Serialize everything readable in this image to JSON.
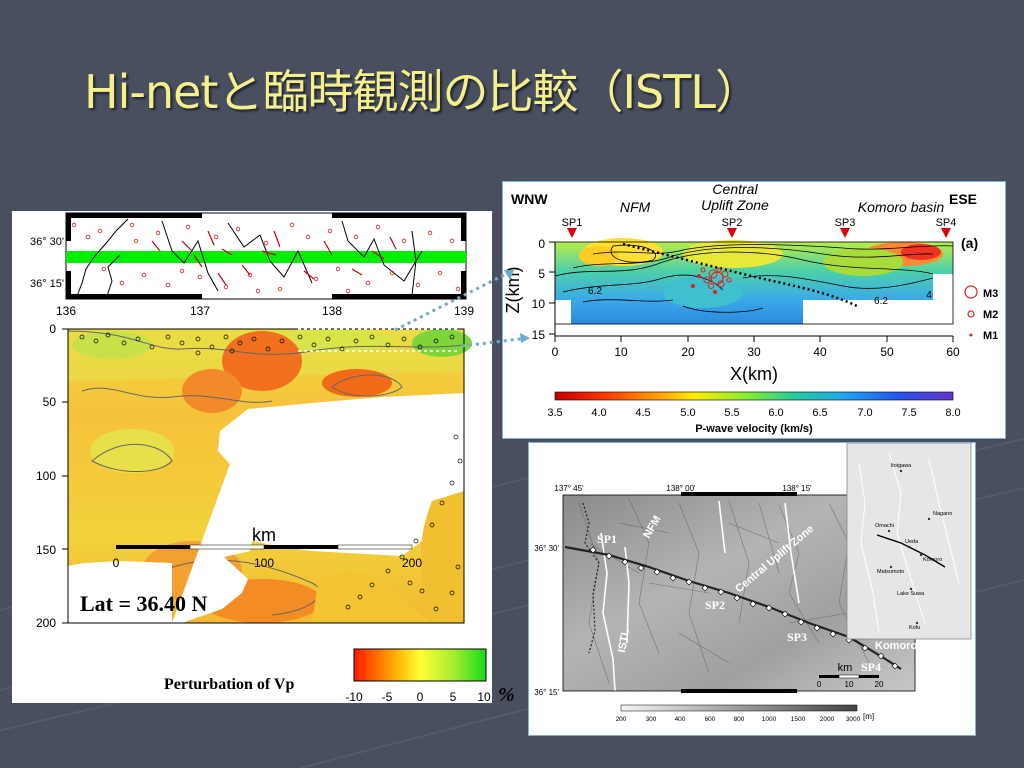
{
  "slide": {
    "title": "Hi-netと臨時観測の比較（ISTL）"
  },
  "left_panel": {
    "map_lat_labels": [
      "36° 30'",
      "36° 15'"
    ],
    "map_lon_labels": [
      "136",
      "137",
      "138",
      "139"
    ],
    "depth_ticks": [
      "0",
      "50",
      "100",
      "150",
      "200"
    ],
    "scale_label": "km",
    "scale_ticks": [
      "0",
      "100",
      "200"
    ],
    "lat_label": "Lat = 36.40 N",
    "legend_title": "Perturbation of Vp",
    "legend_ticks": [
      "-10",
      "-5",
      "0",
      "5",
      "10"
    ],
    "legend_unit": "%"
  },
  "top_right_panel": {
    "left_dir": "WNW",
    "right_dir": "ESE",
    "region_labels": [
      "NFM",
      "Central",
      "Uplift Zone",
      "Komoro basin"
    ],
    "shot_points": [
      "SP1",
      "SP2",
      "SP3",
      "SP4"
    ],
    "z_ticks": [
      "0",
      "5",
      "10",
      "15"
    ],
    "z_label": "Z(km)",
    "x_ticks": [
      "0",
      "10",
      "20",
      "30",
      "40",
      "50",
      "60"
    ],
    "x_label": "X(km)",
    "panel_tag": "(a)",
    "magnitude_legend": [
      "M3",
      "M2",
      "M1"
    ],
    "contour_labels": [
      "6.2",
      "6.2",
      "4"
    ],
    "colorbar_ticks": [
      "3.5",
      "4.0",
      "4.5",
      "5.0",
      "5.5",
      "6.0",
      "6.5",
      "7.0",
      "7.5",
      "8.0"
    ],
    "colorbar_label": "P-wave velocity (km/s)"
  },
  "bottom_right_panel": {
    "lon_labels": [
      "137° 45'",
      "138° 00'",
      "138° 15'"
    ],
    "lat_labels": [
      "36° 30'",
      "36° 15'"
    ],
    "map_labels": [
      "SP1",
      "SP2",
      "SP3",
      "SP4",
      "NFM",
      "ISTL",
      "Central Uplift Zone",
      "Komoro"
    ],
    "scale_label": "km",
    "scale_ticks": [
      "0",
      "10",
      "20"
    ],
    "elevation_ticks": [
      "200",
      "300",
      "400",
      "600",
      "800",
      "1000",
      "1500",
      "2000",
      "3000"
    ],
    "elevation_unit": "[m]",
    "inset_places": [
      "Itoigawa",
      "Nagano",
      "Omachi",
      "Ueda",
      "Komoro",
      "Matsumoto",
      "Lake Suwa",
      "Kofu"
    ]
  }
}
